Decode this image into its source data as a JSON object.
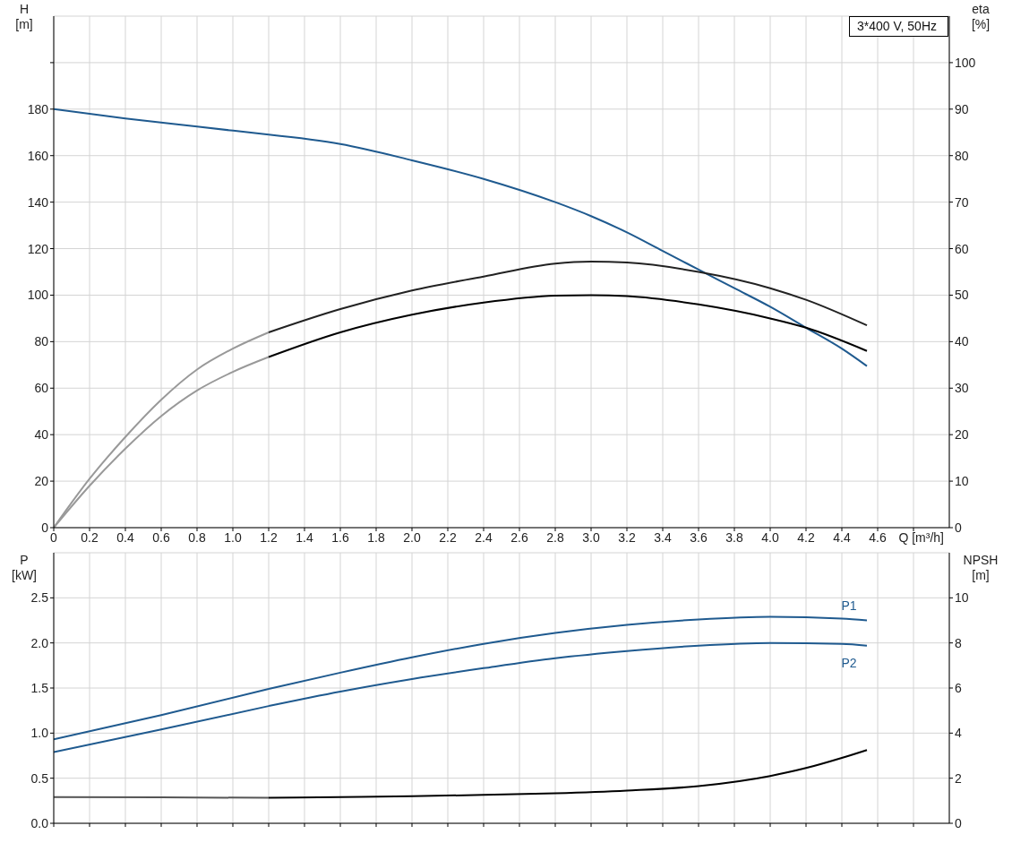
{
  "chart_data": [
    {
      "type": "line",
      "xlabel": "Q [m³/h]",
      "ylabel": "H [m]",
      "y2label": "eta [%]",
      "annotations": [
        "3*400 V, 50Hz"
      ],
      "xlim": [
        0,
        5
      ],
      "xticks": [
        0,
        0.2,
        0.4,
        0.6,
        0.8,
        {
          "value": 1,
          "label": "1.0"
        },
        1.2,
        1.4,
        1.6,
        1.8,
        {
          "value": 2,
          "label": "2.0"
        },
        2.2,
        2.4,
        2.6,
        2.8,
        {
          "value": 3,
          "label": "3.0"
        },
        3.2,
        3.4,
        3.6,
        3.8,
        {
          "value": 4,
          "label": "4.0"
        },
        4.2,
        4.4,
        4.6,
        {
          "value": 4.8,
          "label": null
        }
      ],
      "ylim": [
        0,
        220
      ],
      "yticks": [
        0,
        20,
        40,
        60,
        80,
        100,
        120,
        140,
        160,
        180,
        {
          "value": 200,
          "label": null
        }
      ],
      "y2lim": [
        0,
        110
      ],
      "y2ticks": [
        0,
        10,
        20,
        30,
        40,
        50,
        60,
        70,
        80,
        90,
        100
      ],
      "grid": true,
      "marker": "none",
      "line_style": "solid",
      "series": [
        {
          "color": "#1f5a8f",
          "x": [
            0,
            0.4,
            0.8,
            1.2
          ],
          "values": [
            180,
            176,
            172.5,
            169
          ]
        },
        {
          "color": "#1f5a8f",
          "x": [
            1.2,
            1.6,
            2.0,
            2.4,
            2.8,
            3.0,
            3.2,
            3.4,
            3.6,
            3.8,
            4.0,
            4.2,
            4.4,
            4.54
          ],
          "values": [
            169,
            165,
            158,
            150,
            140,
            134,
            127,
            119,
            111,
            103,
            95,
            86,
            77,
            69.5
          ]
        },
        {
          "color": "#999999",
          "axis": "y2",
          "x": [
            0,
            0.2,
            0.4,
            0.6,
            0.8,
            1.0,
            1.2
          ],
          "values": [
            0,
            10.5,
            19.5,
            27.5,
            34,
            38.5,
            42
          ]
        },
        {
          "color": "#999999",
          "axis": "y2",
          "x": [
            0,
            0.2,
            0.4,
            0.6,
            0.8,
            1.0,
            1.2
          ],
          "values": [
            0,
            9,
            17,
            24,
            29.5,
            33.5,
            36.7
          ]
        },
        {
          "color": "#222222",
          "axis": "y2",
          "x": [
            1.2,
            1.6,
            2.0,
            2.4,
            2.8,
            3.0,
            3.2,
            3.6,
            4.0,
            4.2,
            4.54
          ],
          "values": [
            42,
            47,
            51,
            54,
            56.8,
            57.2,
            57,
            55,
            51.5,
            49,
            43.5
          ]
        },
        {
          "color": "#000000",
          "axis": "y2",
          "x": [
            1.2,
            1.6,
            2.0,
            2.4,
            2.8,
            3.0,
            3.2,
            3.6,
            4.0,
            4.2,
            4.54
          ],
          "values": [
            36.7,
            42,
            45.8,
            48.4,
            49.9,
            50,
            49.8,
            48,
            45,
            43,
            38
          ]
        }
      ]
    },
    {
      "type": "line",
      "ylabel": "P [kW]",
      "y2label": "NPSH [m]",
      "xlim": [
        0,
        5
      ],
      "xticks": [
        0,
        0.2,
        0.4,
        0.6,
        0.8,
        1,
        1.2,
        1.4,
        1.6,
        1.8,
        2,
        2.2,
        2.4,
        2.6,
        2.8,
        3,
        3.2,
        3.4,
        3.6,
        3.8,
        4,
        4.2,
        4.4,
        4.6,
        {
          "value": 4.8,
          "label": null
        }
      ],
      "ylim": [
        0,
        3
      ],
      "yticks": [
        {
          "value": 0,
          "label": "0.0"
        },
        0.5,
        {
          "value": 1,
          "label": "1.0"
        },
        1.5,
        {
          "value": 2,
          "label": "2.0"
        },
        2.5
      ],
      "y2lim": [
        0,
        12
      ],
      "y2ticks": [
        0,
        2,
        4,
        6,
        8,
        10
      ],
      "tick_labels": "y",
      "grid": true,
      "marker": "none",
      "line_style": "solid",
      "series": [
        {
          "color": "#1f5a8f",
          "x": [
            0,
            0.6,
            1.2
          ],
          "values": [
            0.93,
            1.2,
            1.49
          ]
        },
        {
          "name": "P1",
          "color": "#1f5a8f",
          "x": [
            1.2,
            1.6,
            2.0,
            2.4,
            2.8,
            3.2,
            3.6,
            4.0,
            4.4,
            4.54
          ],
          "values": [
            1.49,
            1.67,
            1.84,
            1.99,
            2.11,
            2.2,
            2.26,
            2.29,
            2.27,
            2.25
          ]
        },
        {
          "color": "#1f5a8f",
          "x": [
            0,
            0.6,
            1.2
          ],
          "values": [
            0.79,
            1.04,
            1.3
          ]
        },
        {
          "name": "P2",
          "color": "#1f5a8f",
          "x": [
            1.2,
            1.6,
            2.0,
            2.4,
            2.8,
            3.2,
            3.6,
            4.0,
            4.4,
            4.54
          ],
          "values": [
            1.3,
            1.46,
            1.6,
            1.72,
            1.83,
            1.91,
            1.97,
            2.0,
            1.99,
            1.97
          ]
        },
        {
          "color": "#555555",
          "axis": "y2",
          "x": [
            0,
            0.6,
            1.2
          ],
          "values": [
            1.16,
            1.15,
            1.13
          ]
        },
        {
          "color": "#000000",
          "axis": "y2",
          "x": [
            1.2,
            1.6,
            2.0,
            2.4,
            2.8,
            3.2,
            3.6,
            4.0,
            4.2,
            4.4,
            4.54
          ],
          "values": [
            1.13,
            1.16,
            1.2,
            1.26,
            1.33,
            1.45,
            1.65,
            2.1,
            2.45,
            2.9,
            3.25
          ]
        }
      ]
    }
  ]
}
